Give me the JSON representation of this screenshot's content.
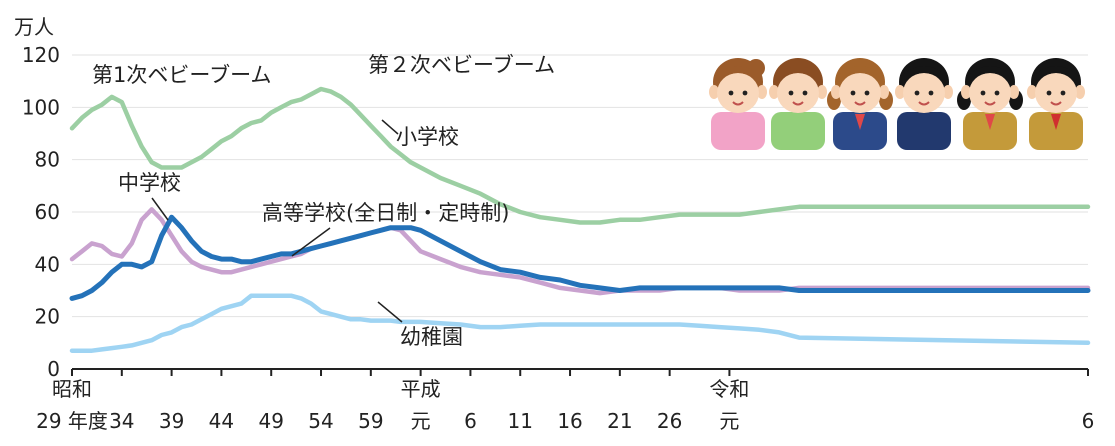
{
  "chart_data": {
    "type": "line",
    "unit_label": "万人",
    "ylim": [
      0,
      120
    ],
    "y_ticks": [
      "0",
      "20",
      "40",
      "60",
      "80",
      "100",
      "120"
    ],
    "x_range": [
      29,
      131
    ],
    "x_ticks": [
      {
        "x": 29,
        "top": "昭和",
        "bottom": "29 年度"
      },
      {
        "x": 34,
        "top": "",
        "bottom": "34"
      },
      {
        "x": 39,
        "top": "",
        "bottom": "39"
      },
      {
        "x": 44,
        "top": "",
        "bottom": "44"
      },
      {
        "x": 49,
        "top": "",
        "bottom": "49"
      },
      {
        "x": 54,
        "top": "",
        "bottom": "54"
      },
      {
        "x": 59,
        "top": "",
        "bottom": "59"
      },
      {
        "x": 64,
        "top": "平成",
        "bottom": "元"
      },
      {
        "x": 69,
        "top": "",
        "bottom": "6"
      },
      {
        "x": 74,
        "top": "",
        "bottom": "11"
      },
      {
        "x": 79,
        "top": "",
        "bottom": "16"
      },
      {
        "x": 84,
        "top": "",
        "bottom": "21"
      },
      {
        "x": 89,
        "top": "",
        "bottom": "26"
      },
      {
        "x": 95,
        "top": "令和",
        "bottom": "元"
      },
      {
        "x": 131,
        "top": "",
        "bottom": "6"
      }
    ],
    "annotations": {
      "boom1": "第1次ベビーブーム",
      "boom2": "第２次ベビーブーム"
    },
    "series": [
      {
        "name": "小学校",
        "color": "#9ccfa3",
        "x": [
          29,
          30,
          31,
          32,
          33,
          34,
          35,
          36,
          37,
          38,
          39,
          40,
          41,
          42,
          43,
          44,
          45,
          46,
          47,
          48,
          49,
          50,
          51,
          52,
          53,
          54,
          55,
          56,
          57,
          58,
          59,
          60,
          61,
          62,
          63,
          64,
          66,
          68,
          70,
          72,
          74,
          76,
          78,
          80,
          82,
          84,
          86,
          88,
          90,
          92,
          94,
          96,
          98,
          100,
          102,
          131
        ],
        "values": [
          92,
          96,
          99,
          101,
          104,
          102,
          93,
          85,
          79,
          77,
          77,
          77,
          79,
          81,
          84,
          87,
          89,
          92,
          94,
          95,
          98,
          100,
          102,
          103,
          105,
          107,
          106,
          104,
          101,
          97,
          93,
          89,
          85,
          82,
          79,
          77,
          73,
          70,
          67,
          63,
          60,
          58,
          57,
          56,
          56,
          57,
          57,
          58,
          59,
          59,
          59,
          59,
          60,
          61,
          62,
          62
        ]
      },
      {
        "name": "中学校",
        "color": "#c9a2cf",
        "x": [
          29,
          30,
          31,
          32,
          33,
          34,
          35,
          36,
          37,
          38,
          39,
          40,
          41,
          42,
          43,
          44,
          45,
          46,
          47,
          48,
          49,
          50,
          51,
          52,
          53,
          54,
          55,
          56,
          57,
          58,
          59,
          60,
          61,
          62,
          63,
          64,
          66,
          68,
          70,
          72,
          74,
          76,
          78,
          80,
          82,
          84,
          86,
          88,
          90,
          92,
          94,
          96,
          98,
          100,
          102,
          131
        ],
        "values": [
          42,
          45,
          48,
          47,
          44,
          43,
          48,
          57,
          61,
          57,
          51,
          45,
          41,
          39,
          38,
          37,
          37,
          38,
          39,
          40,
          41,
          42,
          43,
          44,
          46,
          47,
          48,
          49,
          50,
          51,
          52,
          53,
          54,
          53,
          49,
          45,
          42,
          39,
          37,
          36,
          35,
          33,
          31,
          30,
          29,
          30,
          30,
          30,
          31,
          31,
          31,
          30,
          30,
          30,
          31,
          31
        ]
      },
      {
        "name": "高等学校(全日制・定時制)",
        "color": "#2472b9",
        "x": [
          29,
          30,
          31,
          32,
          33,
          34,
          35,
          36,
          37,
          38,
          39,
          40,
          41,
          42,
          43,
          44,
          45,
          46,
          47,
          48,
          49,
          50,
          51,
          52,
          53,
          54,
          55,
          56,
          57,
          58,
          59,
          60,
          61,
          62,
          63,
          64,
          66,
          68,
          70,
          72,
          74,
          76,
          78,
          80,
          82,
          84,
          86,
          88,
          90,
          92,
          94,
          96,
          98,
          100,
          102,
          131
        ],
        "values": [
          27,
          28,
          30,
          33,
          37,
          40,
          40,
          39,
          41,
          51,
          58,
          54,
          49,
          45,
          43,
          42,
          42,
          41,
          41,
          42,
          43,
          44,
          44,
          45,
          46,
          47,
          48,
          49,
          50,
          51,
          52,
          53,
          54,
          54,
          54,
          53,
          49,
          45,
          41,
          38,
          37,
          35,
          34,
          32,
          31,
          30,
          31,
          31,
          31,
          31,
          31,
          31,
          31,
          31,
          30,
          30
        ]
      },
      {
        "name": "幼稚園",
        "color": "#9fd4f3",
        "x": [
          29,
          30,
          31,
          32,
          33,
          34,
          35,
          36,
          37,
          38,
          39,
          40,
          41,
          42,
          43,
          44,
          45,
          46,
          47,
          48,
          49,
          50,
          51,
          52,
          53,
          54,
          55,
          56,
          57,
          58,
          59,
          60,
          61,
          62,
          63,
          64,
          66,
          68,
          70,
          72,
          74,
          76,
          78,
          80,
          82,
          84,
          86,
          88,
          90,
          92,
          94,
          96,
          98,
          100,
          102,
          131
        ],
        "values": [
          7,
          7,
          7,
          7.5,
          8,
          8.5,
          9,
          10,
          11,
          13,
          14,
          16,
          17,
          19,
          21,
          23,
          24,
          25,
          28,
          28,
          28,
          28,
          28,
          27,
          25,
          22,
          21,
          20,
          19,
          19,
          18.5,
          18.5,
          18.5,
          18,
          18,
          18,
          17.5,
          17,
          16,
          16,
          16.5,
          17,
          17,
          17,
          17,
          17,
          17,
          17,
          17,
          16.5,
          16,
          15.5,
          15,
          14,
          12,
          10
        ]
      }
    ]
  }
}
